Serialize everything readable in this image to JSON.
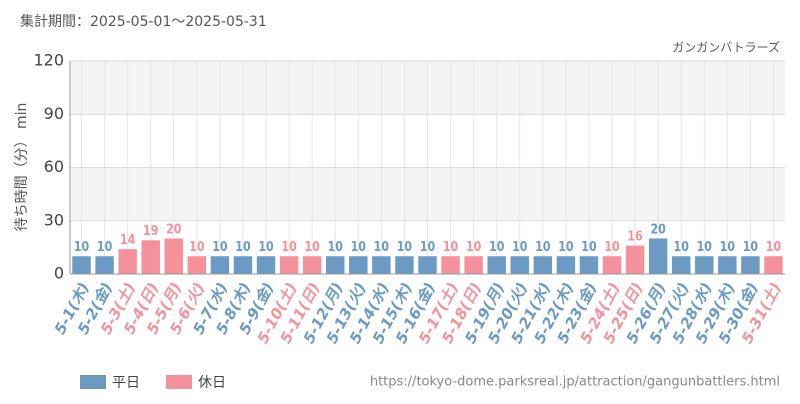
{
  "chart_data": {
    "type": "bar",
    "title": "集計期間：2025-05-01～2025-05-31",
    "subtitle": "ガンガンバトラーズ",
    "y_label": "待ち時間（分） min",
    "categories": [
      "5-1(木)",
      "5-2(金)",
      "5-3(土)",
      "5-4(日)",
      "5-5(月)",
      "5-6(火)",
      "5-7(水)",
      "5-8(木)",
      "5-9(金)",
      "5-10(土)",
      "5-11(日)",
      "5-12(月)",
      "5-13(火)",
      "5-14(水)",
      "5-15(木)",
      "5-16(金)",
      "5-17(土)",
      "5-18(日)",
      "5-19(月)",
      "5-20(火)",
      "5-21(水)",
      "5-22(木)",
      "5-23(金)",
      "5-24(土)",
      "5-25(日)",
      "5-26(月)",
      "5-27(火)",
      "5-28(水)",
      "5-29(木)",
      "5-30(金)",
      "5-31(土)"
    ],
    "series": [
      {
        "name": "平日",
        "color": "#6b9ac4",
        "values": [
          10,
          10,
          null,
          null,
          null,
          null,
          10,
          10,
          10,
          null,
          null,
          10,
          10,
          10,
          10,
          10,
          null,
          null,
          10,
          10,
          10,
          10,
          10,
          null,
          null,
          20,
          10,
          10,
          10,
          10,
          null
        ]
      },
      {
        "name": "休日",
        "color": "#f4919a",
        "values": [
          null,
          null,
          14,
          19,
          20,
          10,
          null,
          null,
          null,
          10,
          10,
          null,
          null,
          null,
          null,
          null,
          10,
          10,
          null,
          null,
          null,
          null,
          null,
          10,
          16,
          null,
          null,
          null,
          null,
          null,
          10
        ]
      }
    ],
    "ylim": [
      0,
      120
    ],
    "yticks": [
      0,
      30,
      60,
      90,
      120
    ],
    "grid": true,
    "legend": "bottom-left",
    "footer": "https://tokyo-dome.parksreal.jp/attraction/gangunbattlers.html"
  }
}
